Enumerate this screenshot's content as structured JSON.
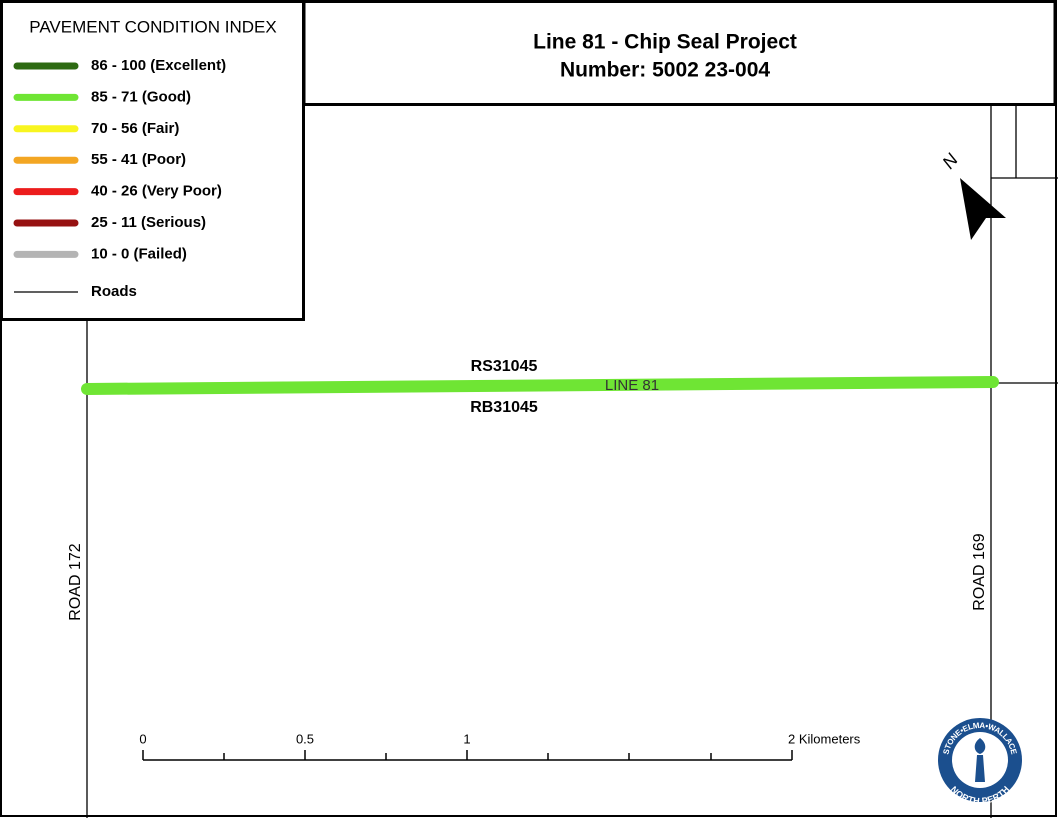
{
  "legend": {
    "title": "PAVEMENT CONDITION INDEX",
    "items": [
      {
        "label": "86 - 100 (Excellent)",
        "color": "#2d6a12"
      },
      {
        "label": "85 - 71 (Good)",
        "color": "#6fe534"
      },
      {
        "label": "70 - 56 (Fair)",
        "color": "#f8f520"
      },
      {
        "label": "55 - 41 (Poor)",
        "color": "#f3a623"
      },
      {
        "label": "40 - 26 (Very Poor)",
        "color": "#ec1c1c"
      },
      {
        "label": "25 - 11 (Serious)",
        "color": "#961111"
      },
      {
        "label": "10 - 0 (Failed)",
        "color": "#b4b4b4"
      }
    ],
    "roads": "Roads"
  },
  "header": {
    "title": "Line 81 - Chip Seal Project",
    "subtitle": "Number: 5002 23-004"
  },
  "map": {
    "line_label": "LINE 81",
    "segment_above": "RS31045",
    "segment_below": "RB31045",
    "west_road": "ROAD 172",
    "east_road": "ROAD 169",
    "north": "N"
  },
  "scale_bar": {
    "labels": [
      "0",
      "0.5",
      "1",
      "2 Kilometers"
    ]
  },
  "logo": {
    "top": "STONE•ELMA•WALLACE",
    "bottom": "NORTH PERTH"
  }
}
